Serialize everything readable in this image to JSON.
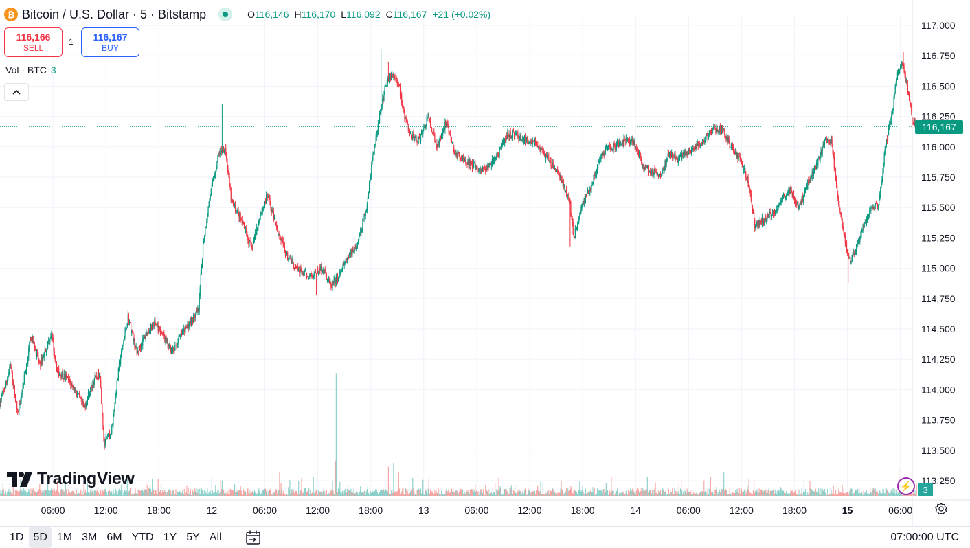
{
  "header": {
    "symbol_title": "Bitcoin / U.S. Dollar · 5 · Bitstamp",
    "coin_glyph": "₿",
    "ohlc": {
      "o_label": "O",
      "o_value": "116,146",
      "h_label": "H",
      "h_value": "116,170",
      "l_label": "L",
      "l_value": "116,092",
      "c_label": "C",
      "c_value": "116,167",
      "change": "+21 (+0.02%)"
    }
  },
  "trade": {
    "sell_price": "116,166",
    "sell_label": "SELL",
    "spread": "1",
    "buy_price": "116,167",
    "buy_label": "BUY"
  },
  "volume_legend": {
    "label": "Vol · BTC",
    "value": "3"
  },
  "last_price_tag": "116,167",
  "volume_tag": "3",
  "logo_text": "TradingView",
  "timeframes": [
    "1D",
    "5D",
    "1M",
    "3M",
    "6M",
    "YTD",
    "1Y",
    "5Y",
    "All"
  ],
  "active_timeframe": "5D",
  "timezone_clock": "07:00:00 UTC",
  "icons": [
    "btc-coin-icon",
    "live-dot-icon",
    "collapse-chevron-icon",
    "tradingview-logo-icon",
    "calendar-range-icon",
    "gear-icon",
    "spark-icon"
  ],
  "colors": {
    "up": "#089981",
    "down": "#f23645",
    "vol_up": "#26a69a",
    "vol_down": "#ef5350",
    "buy": "#2962ff"
  },
  "chart_data": {
    "type": "candlestick",
    "title": "Bitcoin / U.S. Dollar · 5 · Bitstamp",
    "interval_minutes": 5,
    "ylim": [
      113180,
      117150
    ],
    "y_ticks": [
      "117,000",
      "116,750",
      "116,500",
      "116,250",
      "116,000",
      "115,750",
      "115,500",
      "115,250",
      "115,000",
      "114,750",
      "114,500",
      "114,250",
      "114,000",
      "113,750",
      "113,500",
      "113,250"
    ],
    "y_tick_values": [
      117000,
      116750,
      116500,
      116250,
      116000,
      115750,
      115500,
      115250,
      115000,
      114750,
      114500,
      114250,
      114000,
      113750,
      113500,
      113250
    ],
    "x_tick_labels": [
      "06:00",
      "12:00",
      "18:00",
      "12",
      "06:00",
      "12:00",
      "18:00",
      "13",
      "06:00",
      "12:00",
      "18:00",
      "14",
      "06:00",
      "12:00",
      "18:00",
      "15",
      "06:00"
    ],
    "x_tick_hours": [
      6,
      12,
      18,
      24,
      30,
      36,
      42,
      48,
      54,
      60,
      66,
      72,
      78,
      84,
      90,
      96,
      102
    ],
    "first_bar_hour": 0,
    "last_bar_hour": 103.85,
    "last_price": 116167,
    "price_anchors": [
      [
        0,
        113900
      ],
      [
        0.5,
        114000
      ],
      [
        1.2,
        114200
      ],
      [
        2,
        113800
      ],
      [
        3,
        114200
      ],
      [
        3.5,
        114450
      ],
      [
        4.5,
        114200
      ],
      [
        5.8,
        114460
      ],
      [
        6.5,
        114150
      ],
      [
        7.5,
        114100
      ],
      [
        8.5,
        114000
      ],
      [
        9.5,
        113850
      ],
      [
        10.5,
        114050
      ],
      [
        11.3,
        114150
      ],
      [
        11.8,
        113550
      ],
      [
        12.6,
        113650
      ],
      [
        13.5,
        114200
      ],
      [
        14.5,
        114600
      ],
      [
        15.5,
        114300
      ],
      [
        16.5,
        114450
      ],
      [
        17.5,
        114550
      ],
      [
        18.5,
        114450
      ],
      [
        19.5,
        114300
      ],
      [
        20.5,
        114450
      ],
      [
        21.5,
        114550
      ],
      [
        22.5,
        114650
      ],
      [
        23,
        115200
      ],
      [
        23.8,
        115600
      ],
      [
        24.8,
        115950
      ],
      [
        25.5,
        116000
      ],
      [
        26.2,
        115550
      ],
      [
        27,
        115450
      ],
      [
        27.8,
        115300
      ],
      [
        28.5,
        115150
      ],
      [
        29.5,
        115450
      ],
      [
        30.3,
        115600
      ],
      [
        31.5,
        115300
      ],
      [
        32.5,
        115100
      ],
      [
        33.5,
        115000
      ],
      [
        34.5,
        114950
      ],
      [
        35.5,
        114950
      ],
      [
        36.5,
        115000
      ],
      [
        37.5,
        114850
      ],
      [
        38.5,
        114950
      ],
      [
        39.5,
        115100
      ],
      [
        40.5,
        115200
      ],
      [
        41.5,
        115500
      ],
      [
        42.2,
        115900
      ],
      [
        43,
        116250
      ],
      [
        43.8,
        116550
      ],
      [
        44.5,
        116600
      ],
      [
        45.2,
        116500
      ],
      [
        45.8,
        116250
      ],
      [
        46.5,
        116100
      ],
      [
        47.5,
        116050
      ],
      [
        48.5,
        116250
      ],
      [
        49.5,
        116000
      ],
      [
        50.5,
        116200
      ],
      [
        51.5,
        115950
      ],
      [
        52.5,
        115900
      ],
      [
        53.5,
        115850
      ],
      [
        54.5,
        115800
      ],
      [
        55.5,
        115850
      ],
      [
        56.5,
        115950
      ],
      [
        57.5,
        116100
      ],
      [
        58.5,
        116100
      ],
      [
        59.5,
        116050
      ],
      [
        60.5,
        116050
      ],
      [
        61.5,
        115950
      ],
      [
        62.5,
        115850
      ],
      [
        63.5,
        115750
      ],
      [
        64.5,
        115550
      ],
      [
        65,
        115250
      ],
      [
        65.8,
        115500
      ],
      [
        66.8,
        115650
      ],
      [
        67.8,
        115850
      ],
      [
        68.8,
        116000
      ],
      [
        69.8,
        116000
      ],
      [
        70.8,
        116050
      ],
      [
        71.8,
        116050
      ],
      [
        72.8,
        115850
      ],
      [
        73.8,
        115800
      ],
      [
        74.8,
        115750
      ],
      [
        75.8,
        115950
      ],
      [
        76.8,
        115900
      ],
      [
        77.8,
        115950
      ],
      [
        78.8,
        116000
      ],
      [
        79.8,
        116050
      ],
      [
        80.8,
        116150
      ],
      [
        81.8,
        116150
      ],
      [
        82.8,
        116000
      ],
      [
        83.8,
        115900
      ],
      [
        84.8,
        115700
      ],
      [
        85.5,
        115350
      ],
      [
        86.5,
        115400
      ],
      [
        87.5,
        115450
      ],
      [
        88.5,
        115550
      ],
      [
        89.5,
        115650
      ],
      [
        90.5,
        115500
      ],
      [
        91.5,
        115700
      ],
      [
        92.5,
        115850
      ],
      [
        93.5,
        116050
      ],
      [
        94.2,
        116050
      ],
      [
        94.8,
        115650
      ],
      [
        95.5,
        115300
      ],
      [
        96.3,
        115050
      ],
      [
        97,
        115150
      ],
      [
        97.8,
        115350
      ],
      [
        98.8,
        115500
      ],
      [
        99.6,
        115550
      ],
      [
        100.3,
        116000
      ],
      [
        101,
        116250
      ],
      [
        101.5,
        116550
      ],
      [
        102.2,
        116700
      ],
      [
        102.9,
        116450
      ],
      [
        103.4,
        116220
      ],
      [
        103.85,
        116167
      ]
    ],
    "price_shocks": [
      [
        11.8,
        113500,
        "low"
      ],
      [
        12.2,
        113600,
        "low"
      ],
      [
        25.2,
        116350,
        "high"
      ],
      [
        43.2,
        116800,
        "high"
      ],
      [
        44,
        116700,
        "high"
      ],
      [
        35.8,
        114780,
        "low"
      ],
      [
        64.6,
        115180,
        "low"
      ],
      [
        96.1,
        114880,
        "low"
      ],
      [
        102.3,
        116780,
        "high"
      ]
    ],
    "volume_spikes": [
      [
        38.1,
        0.3
      ],
      [
        38.05,
        0.62
      ],
      [
        38.0,
        0.18
      ],
      [
        44.6,
        0.17
      ],
      [
        45.2,
        0.12
      ],
      [
        35.5,
        0.1
      ],
      [
        44.0,
        0.15
      ],
      [
        31.7,
        0.12
      ],
      [
        101.8,
        0.15
      ],
      [
        80.5,
        0.1
      ],
      [
        82.0,
        0.12
      ],
      [
        103.8,
        0.06
      ]
    ],
    "volume_series": {
      "name": "Vol · BTC",
      "last_value": 3
    }
  }
}
